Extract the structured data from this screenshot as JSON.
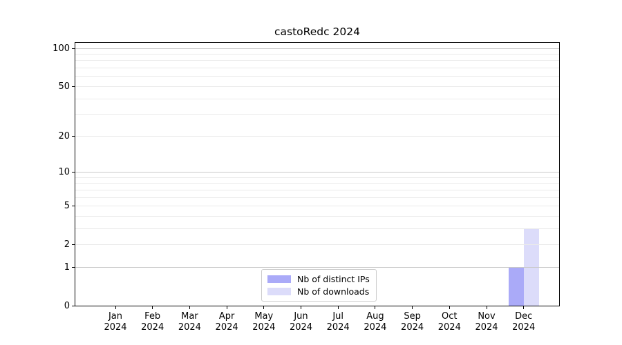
{
  "chart_data": {
    "type": "bar",
    "title": "castoRedc 2024",
    "categories": [
      "Jan 2024",
      "Feb 2024",
      "Mar 2024",
      "Apr 2024",
      "May 2024",
      "Jun 2024",
      "Jul 2024",
      "Aug 2024",
      "Sep 2024",
      "Oct 2024",
      "Nov 2024",
      "Dec 2024"
    ],
    "series": [
      {
        "name": "Nb of distinct IPs",
        "color": "#aaaaf8",
        "values": [
          0,
          0,
          0,
          0,
          0,
          0,
          0,
          0,
          0,
          0,
          0,
          1
        ]
      },
      {
        "name": "Nb of downloads",
        "color": "#dcdcfa",
        "values": [
          0,
          0,
          0,
          0,
          0,
          0,
          0,
          0,
          0,
          0,
          0,
          3
        ]
      }
    ],
    "y_axis": {
      "scale": "log1p",
      "labeled_ticks": [
        0,
        1,
        2,
        5,
        10,
        20,
        50,
        100
      ],
      "major_gridlines": [
        1,
        10,
        100
      ],
      "minor_gridlines": [
        2,
        3,
        4,
        5,
        6,
        7,
        8,
        9,
        20,
        30,
        40,
        50,
        60,
        70,
        80,
        90
      ],
      "ylim": [
        0,
        112
      ]
    },
    "x_axis": {
      "tick_labels_two_line": true
    },
    "legend": {
      "position": "bottom-center"
    },
    "grid": "horizontal",
    "colors": {
      "bar_distinct_ips": "#aaaaf8",
      "bar_downloads": "#dcdcfa",
      "grid_major": "#c8c8c8",
      "grid_minor": "#eaeaea",
      "axis_spine": "#000000",
      "legend_border": "#cccccc",
      "background": "#ffffff"
    }
  }
}
